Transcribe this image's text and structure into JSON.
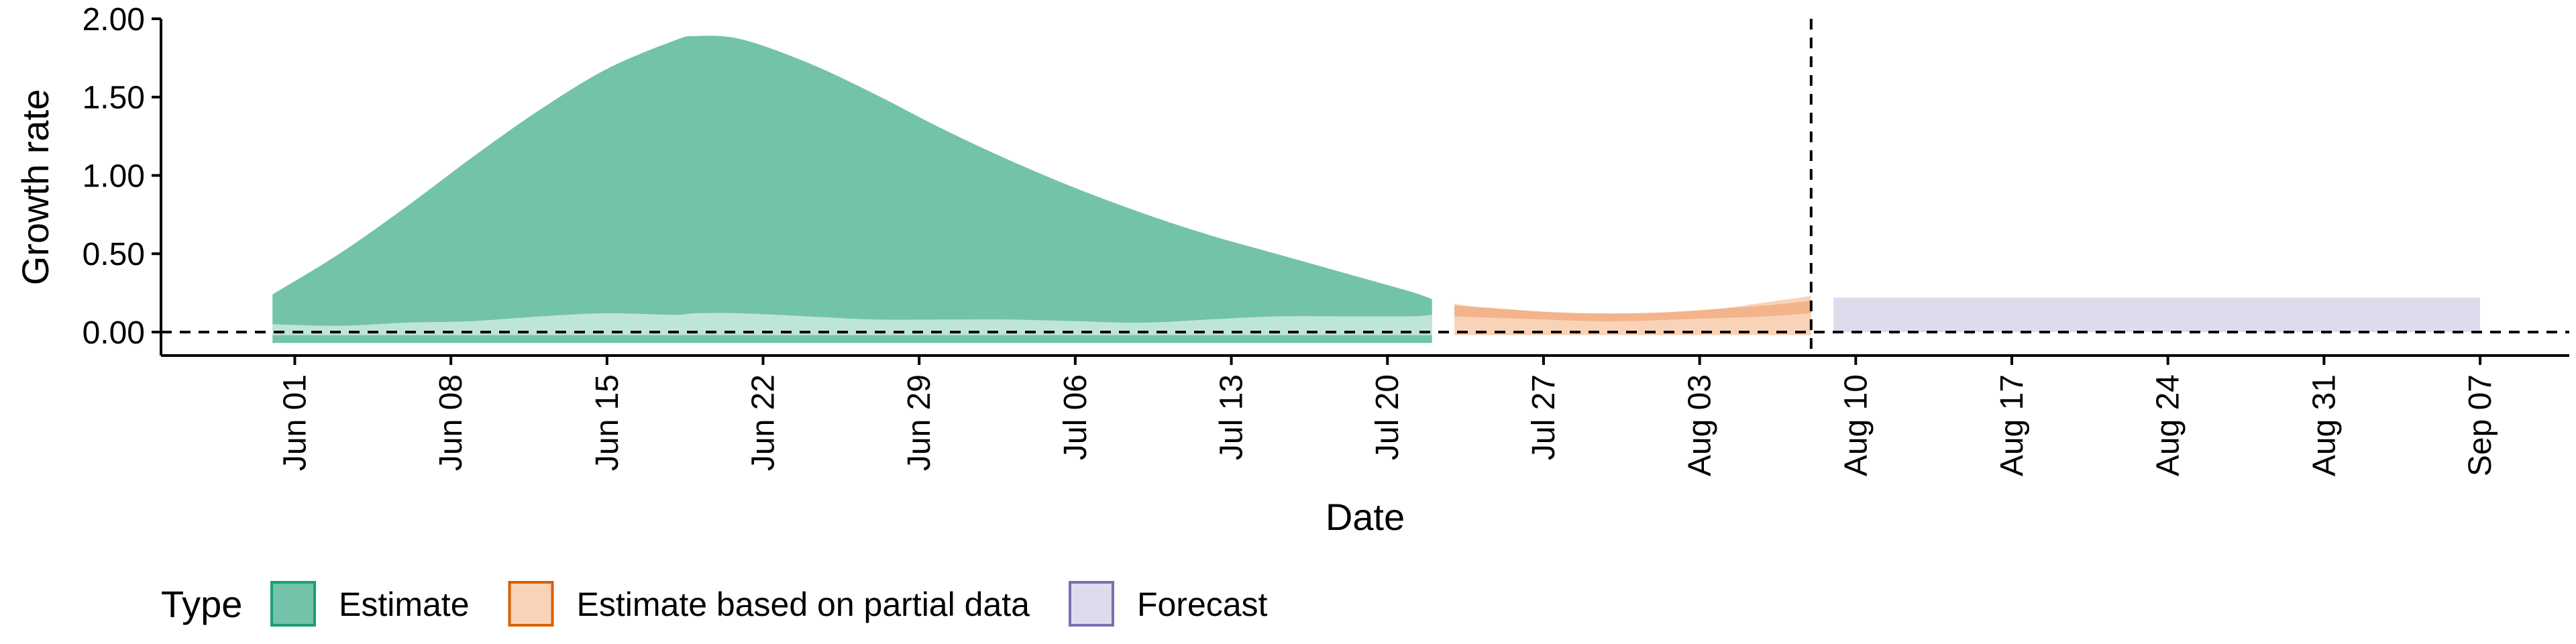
{
  "chart_data": {
    "type": "area",
    "xlabel": "Date",
    "ylabel": "Growth rate",
    "ylim": [
      -0.15,
      2.0
    ],
    "yticks": [
      {
        "value": 0.0,
        "label": "0.00"
      },
      {
        "value": 0.5,
        "label": "0.50"
      },
      {
        "value": 1.0,
        "label": "1.00"
      },
      {
        "value": 1.5,
        "label": "1.50"
      },
      {
        "value": 2.0,
        "label": "2.00"
      }
    ],
    "xlim": [
      "2020-05-26",
      "2020-09-11"
    ],
    "xticks": [
      {
        "date": "2020-06-01",
        "label": "Jun 01"
      },
      {
        "date": "2020-06-08",
        "label": "Jun 08"
      },
      {
        "date": "2020-06-15",
        "label": "Jun 15"
      },
      {
        "date": "2020-06-22",
        "label": "Jun 22"
      },
      {
        "date": "2020-06-29",
        "label": "Jun 29"
      },
      {
        "date": "2020-07-06",
        "label": "Jul 06"
      },
      {
        "date": "2020-07-13",
        "label": "Jul 13"
      },
      {
        "date": "2020-07-20",
        "label": "Jul 20"
      },
      {
        "date": "2020-07-27",
        "label": "Jul 27"
      },
      {
        "date": "2020-08-03",
        "label": "Aug 03"
      },
      {
        "date": "2020-08-10",
        "label": "Aug 10"
      },
      {
        "date": "2020-08-17",
        "label": "Aug 17"
      },
      {
        "date": "2020-08-24",
        "label": "Aug 24"
      },
      {
        "date": "2020-08-31",
        "label": "Aug 31"
      },
      {
        "date": "2020-09-07",
        "label": "Sep 07"
      }
    ],
    "reference_lines": {
      "horizontal_y": 0.0,
      "vertical_date": "2020-08-08"
    },
    "legend": {
      "title": "Type",
      "position": "bottom-left"
    },
    "series": [
      {
        "name": "Estimate",
        "fill": "#72c3aa",
        "inner_fill": "#bfe5d8",
        "border": "#1b9e77",
        "x": [
          "2020-05-31",
          "2020-06-03",
          "2020-06-06",
          "2020-06-09",
          "2020-06-12",
          "2020-06-15",
          "2020-06-18",
          "2020-06-19",
          "2020-06-21",
          "2020-06-24",
          "2020-06-27",
          "2020-06-30",
          "2020-07-03",
          "2020-07-06",
          "2020-07-09",
          "2020-07-12",
          "2020-07-15",
          "2020-07-18",
          "2020-07-21",
          "2020-07-22"
        ],
        "upper": [
          0.24,
          0.5,
          0.8,
          1.12,
          1.42,
          1.68,
          1.86,
          1.89,
          1.87,
          1.72,
          1.52,
          1.3,
          1.1,
          0.92,
          0.76,
          0.62,
          0.5,
          0.38,
          0.26,
          0.21
        ],
        "lower": [
          -0.07,
          -0.07,
          -0.07,
          -0.07,
          -0.07,
          -0.07,
          -0.07,
          -0.07,
          -0.07,
          -0.07,
          -0.07,
          -0.07,
          -0.07,
          -0.07,
          -0.07,
          -0.07,
          -0.07,
          -0.07,
          -0.07,
          -0.07
        ],
        "inner_upper": [
          0.05,
          0.04,
          0.06,
          0.07,
          0.1,
          0.12,
          0.11,
          0.12,
          0.12,
          0.1,
          0.08,
          0.08,
          0.08,
          0.07,
          0.06,
          0.08,
          0.1,
          0.1,
          0.1,
          0.11
        ],
        "inner_lower": [
          -0.02,
          -0.02,
          -0.02,
          -0.02,
          -0.02,
          -0.02,
          -0.02,
          -0.02,
          -0.02,
          -0.02,
          -0.02,
          -0.02,
          -0.02,
          -0.02,
          -0.02,
          -0.02,
          -0.02,
          -0.02,
          -0.02,
          -0.02
        ]
      },
      {
        "name": "Estimate based on partial data",
        "fill": "#f8d3b8",
        "inner_fill": "#f3b48c",
        "border": "#d95f02",
        "x": [
          "2020-07-23",
          "2020-07-25",
          "2020-07-27",
          "2020-07-29",
          "2020-07-31",
          "2020-08-02",
          "2020-08-04",
          "2020-08-06",
          "2020-08-08"
        ],
        "upper": [
          0.18,
          0.14,
          0.11,
          0.1,
          0.1,
          0.12,
          0.15,
          0.19,
          0.23
        ],
        "lower": [
          -0.02,
          -0.02,
          -0.02,
          -0.02,
          -0.02,
          -0.02,
          -0.02,
          -0.02,
          -0.02
        ],
        "inner_upper": [
          0.17,
          0.15,
          0.13,
          0.12,
          0.12,
          0.13,
          0.15,
          0.17,
          0.2
        ],
        "inner_lower": [
          0.1,
          0.09,
          0.08,
          0.07,
          0.07,
          0.08,
          0.09,
          0.1,
          0.12
        ]
      },
      {
        "name": "Forecast",
        "fill": "#dddcec",
        "inner_fill": "#c7c5e0",
        "border": "#7570b3",
        "x": [
          "2020-08-09",
          "2020-09-07"
        ],
        "upper": [
          0.22,
          0.22
        ],
        "lower": [
          0.0,
          0.0
        ]
      }
    ]
  }
}
